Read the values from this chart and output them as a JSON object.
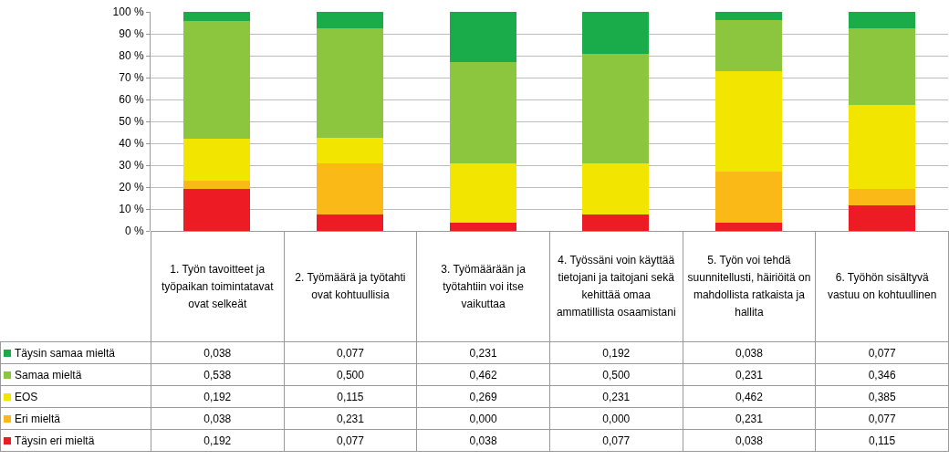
{
  "chart_data": {
    "type": "bar",
    "stacked": true,
    "categories": [
      "1. Työn tavoitteet ja työpaikan toimintatavat ovat selkeät",
      "2. Työmäärä ja työtahti ovat kohtuullisia",
      "3. Työmäärään ja työtahtiin voi itse vaikuttaa",
      "4. Työssäni voin käyttää tietojani ja taitojani sekä kehittää omaa ammatillista osaamistani",
      "5. Työn voi tehdä suunnitellusti, häiriöitä on mahdollista ratkaista ja hallita",
      "6. Työhön sisältyvä vastuu on kohtuullinen"
    ],
    "series": [
      {
        "name": "Täysin eri mieltä",
        "color": "#ed1c24",
        "values": [
          0.192,
          0.077,
          0.038,
          0.077,
          0.038,
          0.115
        ],
        "value_labels": [
          "0,192",
          "0,077",
          "0,038",
          "0,077",
          "0,038",
          "0,115"
        ]
      },
      {
        "name": "Eri mieltä",
        "color": "#fbb917",
        "values": [
          0.038,
          0.231,
          0.0,
          0.0,
          0.231,
          0.077
        ],
        "value_labels": [
          "0,038",
          "0,231",
          "0,000",
          "0,000",
          "0,231",
          "0,077"
        ]
      },
      {
        "name": "EOS",
        "color": "#f2e600",
        "values": [
          0.192,
          0.115,
          0.269,
          0.231,
          0.462,
          0.385
        ],
        "value_labels": [
          "0,192",
          "0,115",
          "0,269",
          "0,231",
          "0,462",
          "0,385"
        ]
      },
      {
        "name": "Samaa mieltä",
        "color": "#8cc63f",
        "values": [
          0.538,
          0.5,
          0.462,
          0.5,
          0.231,
          0.346
        ],
        "value_labels": [
          "0,538",
          "0,500",
          "0,462",
          "0,500",
          "0,231",
          "0,346"
        ]
      },
      {
        "name": "Täysin samaa mieltä",
        "color": "#1aab4b",
        "values": [
          0.038,
          0.077,
          0.231,
          0.192,
          0.038,
          0.077
        ],
        "value_labels": [
          "0,038",
          "0,077",
          "0,231",
          "0,192",
          "0,038",
          "0,077"
        ]
      }
    ],
    "ylim": [
      0,
      1
    ],
    "yticks": [
      {
        "value": 0,
        "label": "0 %"
      },
      {
        "value": 0.1,
        "label": "10 %"
      },
      {
        "value": 0.2,
        "label": "20 %"
      },
      {
        "value": 0.3,
        "label": "30 %"
      },
      {
        "value": 0.4,
        "label": "40 %"
      },
      {
        "value": 0.5,
        "label": "50 %"
      },
      {
        "value": 0.6,
        "label": "60 %"
      },
      {
        "value": 0.7,
        "label": "70 %"
      },
      {
        "value": 0.8,
        "label": "80 %"
      },
      {
        "value": 0.9,
        "label": "90 %"
      },
      {
        "value": 1,
        "label": "100 %"
      }
    ],
    "grid": "y",
    "tick_labels": "y",
    "legend": "bottom left"
  }
}
